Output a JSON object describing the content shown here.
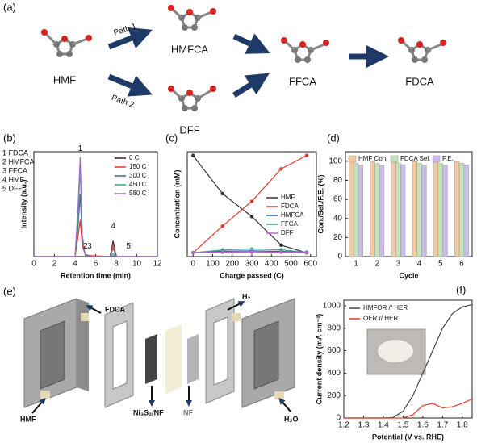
{
  "scheme": {
    "label": "(a)",
    "molecules": [
      "HMF",
      "HMFCA",
      "DFF",
      "FFCA",
      "FDCA"
    ],
    "paths": [
      "Path 1",
      "Path 2"
    ]
  },
  "device": {
    "label": "(e)",
    "texts": [
      "FDCA",
      "HMF",
      "Ni₃S₂/NF",
      "NF",
      "H₂",
      "H₂O"
    ]
  },
  "chart_data": [
    {
      "type": "line",
      "label": "(b)",
      "xlabel": "Retention time (min)",
      "ylabel": "Intensity (a.u.)",
      "x": [
        0,
        4.0,
        4.3,
        4.5,
        4.7,
        5.0,
        5.4,
        7.4,
        7.7,
        8.0,
        9.2,
        12
      ],
      "xlim": [
        0,
        12
      ],
      "xticks": [
        0,
        2,
        4,
        6,
        8,
        10,
        12
      ],
      "ylim": [
        0,
        1
      ],
      "peak_key": [
        "1 FDCA",
        "2 HMFCA",
        "3 FFCA",
        "4 HMF",
        "5 DFF"
      ],
      "annotations": [
        {
          "text": "1",
          "x": 4.5,
          "y": 0.99
        },
        {
          "text": "2",
          "x": 5.0,
          "y": 0.06
        },
        {
          "text": "3",
          "x": 5.4,
          "y": 0.06
        },
        {
          "text": "4",
          "x": 7.7,
          "y": 0.25
        },
        {
          "text": "5",
          "x": 9.2,
          "y": 0.06
        }
      ],
      "series": [
        {
          "name": "0 C",
          "color": "#3a1f1f",
          "values": [
            0,
            0,
            0,
            0,
            0,
            0,
            0,
            0,
            0.15,
            0,
            0,
            0
          ]
        },
        {
          "name": "150 C",
          "color": "#e8392d",
          "values": [
            0,
            0,
            0.2,
            0.35,
            0.1,
            0.02,
            0.01,
            0,
            0.12,
            0,
            0,
            0
          ]
        },
        {
          "name": "300 C",
          "color": "#3f6f7a",
          "values": [
            0,
            0,
            0.3,
            0.6,
            0.15,
            0.02,
            0,
            0,
            0.08,
            0,
            0,
            0
          ]
        },
        {
          "name": "450 C",
          "color": "#3aa88a",
          "values": [
            0,
            0,
            0.4,
            0.85,
            0.2,
            0.01,
            0,
            0,
            0.03,
            0,
            0,
            0
          ]
        },
        {
          "name": "580 C",
          "color": "#9b6bd1",
          "values": [
            0,
            0,
            0.5,
            0.95,
            0.2,
            0,
            0,
            0,
            0.01,
            0,
            0,
            0
          ]
        }
      ]
    },
    {
      "type": "line",
      "label": "(c)",
      "xlabel": "Charge passed (C)",
      "ylabel": "Concentration (mM)",
      "markers": true,
      "x": [
        0,
        150,
        300,
        450,
        580
      ],
      "xlim": [
        -30,
        630
      ],
      "xticks": [
        0,
        100,
        200,
        300,
        400,
        500,
        600
      ],
      "ylim": [
        -2,
        53
      ],
      "series": [
        {
          "name": "HMF",
          "color": "#333333",
          "values": [
            51,
            31,
            19,
            4,
            0
          ]
        },
        {
          "name": "FDCA",
          "color": "#e8392d",
          "values": [
            0,
            14,
            27,
            44,
            51
          ]
        },
        {
          "name": "HMFCA",
          "color": "#2a5fb0",
          "values": [
            0,
            0.8,
            1,
            0.7,
            0.3
          ]
        },
        {
          "name": "FFCA",
          "color": "#3aa88a",
          "values": [
            0,
            1.5,
            2,
            1.5,
            0.3
          ]
        },
        {
          "name": "DFF",
          "color": "#c05fd0",
          "values": [
            0,
            0.3,
            0.4,
            0.3,
            0.1
          ]
        }
      ]
    },
    {
      "type": "bar",
      "label": "(d)",
      "xlabel": "Cycle",
      "ylabel": "Con./Sel./F.E. (%)",
      "categories": [
        "1",
        "2",
        "3",
        "4",
        "5",
        "6"
      ],
      "ylim": [
        0,
        110
      ],
      "yticks": [
        0,
        20,
        40,
        60,
        80,
        100
      ],
      "series": [
        {
          "name": "HMF Con.",
          "color": "#f7c99b",
          "values": [
            100,
            99.5,
            99.8,
            99.6,
            99.4,
            99.5
          ]
        },
        {
          "name": "FDCA Sel.",
          "color": "#c2e4b8",
          "values": [
            98,
            97.5,
            98.2,
            97.8,
            97.6,
            98
          ]
        },
        {
          "name": "F.E.",
          "color": "#cbbbe9",
          "values": [
            96,
            95.5,
            96.5,
            96,
            95.8,
            96.2
          ]
        }
      ]
    },
    {
      "type": "line",
      "label": "(f)",
      "xlabel": "Potential (V vs. RHE)",
      "ylabel": "Current density (mA cm⁻²)",
      "x": [
        1.2,
        1.4,
        1.45,
        1.5,
        1.55,
        1.6,
        1.65,
        1.7,
        1.75,
        1.8,
        1.85
      ],
      "xlim": [
        1.2,
        1.85
      ],
      "xticks": [
        1.2,
        1.3,
        1.4,
        1.5,
        1.6,
        1.7,
        1.8
      ],
      "ylim": [
        0,
        1050
      ],
      "yticks": [
        0,
        200,
        400,
        600,
        800,
        1000
      ],
      "series": [
        {
          "name": "HMFOR // HER",
          "color": "#444444",
          "values": [
            0,
            0,
            5,
            60,
            200,
            400,
            600,
            800,
            930,
            990,
            1010
          ]
        },
        {
          "name": "OER // HER",
          "color": "#e8392d",
          "values": [
            0,
            0,
            0,
            0,
            30,
            110,
            130,
            90,
            100,
            130,
            170
          ]
        }
      ]
    }
  ]
}
